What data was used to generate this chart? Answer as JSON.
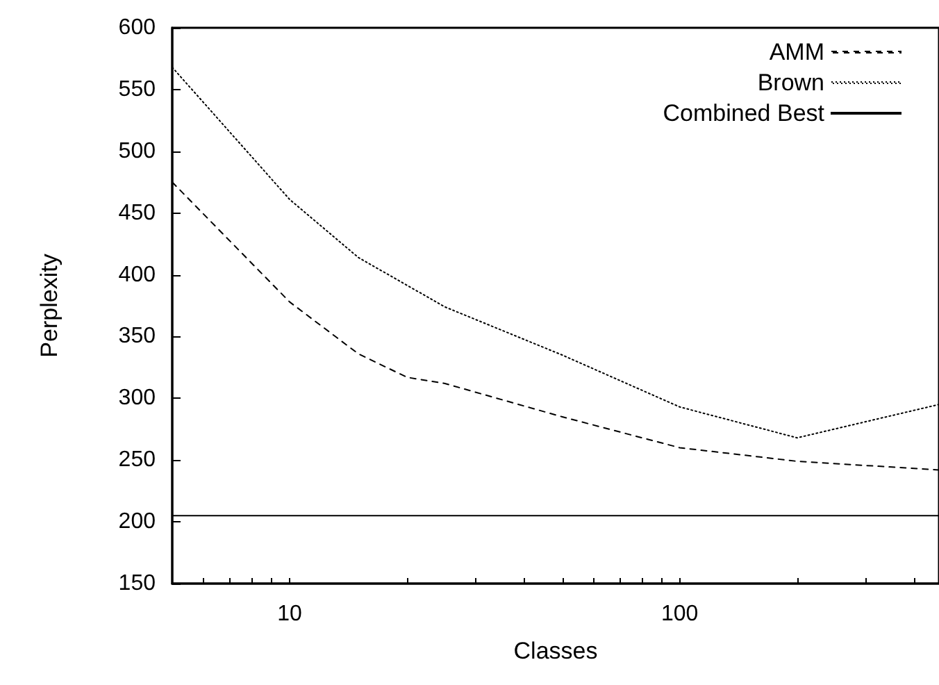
{
  "chart_data": {
    "type": "line",
    "xlabel": "Classes",
    "ylabel": "Perplexity",
    "log": "x",
    "xlim": [
      5,
      462
    ],
    "xticks": [
      {
        "value": 6,
        "label": null
      },
      {
        "value": 7,
        "label": null
      },
      {
        "value": 8,
        "label": null
      },
      {
        "value": 9,
        "label": null
      },
      10,
      {
        "value": 20,
        "label": null
      },
      {
        "value": 30,
        "label": null
      },
      {
        "value": 40,
        "label": null
      },
      {
        "value": 50,
        "label": null
      },
      {
        "value": 60,
        "label": null
      },
      {
        "value": 70,
        "label": null
      },
      {
        "value": 80,
        "label": null
      },
      {
        "value": 90,
        "label": null
      },
      100,
      {
        "value": 200,
        "label": null
      },
      {
        "value": 300,
        "label": null
      },
      {
        "value": 400,
        "label": null
      }
    ],
    "ylim": [
      150,
      600
    ],
    "yticks": [
      150,
      200,
      250,
      300,
      350,
      400,
      450,
      500,
      550,
      600
    ],
    "grid": false,
    "legend": "top right",
    "marker": "none",
    "series": [
      {
        "name": "AMM",
        "color": "#000000",
        "line_style": "dashed",
        "x": [
          5,
          10,
          15,
          20,
          25,
          50,
          100,
          200,
          462
        ],
        "values": [
          475,
          378,
          336,
          317,
          312,
          285,
          260,
          249,
          242
        ]
      },
      {
        "name": "Brown",
        "color": "#000000",
        "line_style": "dotted",
        "x": [
          5,
          10,
          15,
          25,
          50,
          100,
          200,
          462
        ],
        "values": [
          568,
          461,
          414,
          374,
          335,
          293,
          268,
          295
        ]
      },
      {
        "name": "Combined Best",
        "color": "#000000",
        "line_style": "solid",
        "x": [
          5,
          462
        ],
        "values": [
          205,
          205
        ]
      }
    ]
  }
}
